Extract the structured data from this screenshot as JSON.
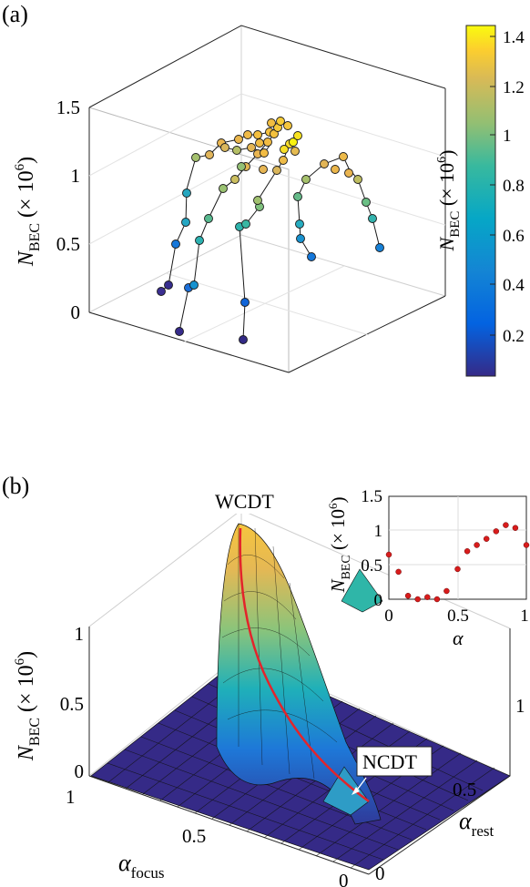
{
  "panel_a": {
    "label": "(a)",
    "zlabel_main": "N",
    "zlabel_sub": "BEC",
    "zlabel_rest": "(× 10",
    "zlabel_exp": "6",
    "zlabel_close": ")",
    "colorbar_label_main": "N",
    "colorbar_label_sub": "BEC",
    "colorbar_label_rest": "(× 10",
    "colorbar_label_exp": "6",
    "colorbar_label_close": ")"
  },
  "panel_b": {
    "label": "(b)",
    "annotation_top": "WCDT",
    "annotation_bottom": "NCDT",
    "zlabel_main": "N",
    "zlabel_sub": "BEC",
    "zlabel_rest": "(× 10",
    "zlabel_exp": "6",
    "zlabel_close": ")",
    "xlabel_main": "α",
    "xlabel_sub": "focus",
    "ylabel_main": "α",
    "ylabel_sub": "rest",
    "inset_xlabel": "α",
    "inset_ylabel_main": "N",
    "inset_ylabel_sub": "BEC",
    "inset_ylabel_rest": "(× 10",
    "inset_ylabel_exp": "6",
    "inset_ylabel_close": ")"
  },
  "colors": {
    "marker_red": "#d81c1c",
    "curve_red": "#e3242b",
    "surface_low": "#352a87"
  },
  "chart_data": [
    {
      "type": "scatter",
      "name": "panel-a-3d-scatter",
      "zlim": [
        0,
        1.5
      ],
      "z_ticks": [
        "0",
        "0.5",
        "1",
        "1.5"
      ],
      "colorbar": {
        "range": [
          0.02,
          1.43
        ],
        "ticks": [
          "0.2",
          "0.4",
          "0.6",
          "0.8",
          "1",
          "1.2",
          "1.4"
        ],
        "colormap": "parula"
      },
      "points_z": [
        0.15,
        0.2,
        0.45,
        0.65,
        0.85,
        1.05,
        1.15,
        1.25,
        0.05,
        0.35,
        0.6,
        0.75,
        1.0,
        1.2,
        1.3,
        1.35,
        0.1,
        0.3,
        0.6,
        0.85,
        1.15,
        1.3,
        1.4,
        1.43,
        0.15,
        0.3,
        0.45,
        0.6,
        0.85,
        1.0,
        1.15,
        1.25
      ]
    },
    {
      "type": "surface",
      "name": "panel-b-3d-surface",
      "zlim": [
        0,
        1.0
      ],
      "z_ticks": [
        "0",
        "0.5",
        "1"
      ],
      "x_ticks": [
        "0",
        "0.5",
        "1"
      ],
      "y_ticks": [
        "0",
        "0.5",
        "1"
      ]
    },
    {
      "type": "scatter",
      "name": "panel-b-inset",
      "x": [
        0,
        0.07,
        0.14,
        0.21,
        0.28,
        0.35,
        0.42,
        0.5,
        0.57,
        0.64,
        0.71,
        0.78,
        0.85,
        0.92,
        1.0
      ],
      "y": [
        0.65,
        0.4,
        0.05,
        0.0,
        0.03,
        0.0,
        0.12,
        0.44,
        0.7,
        0.79,
        0.88,
        0.99,
        1.08,
        1.04,
        0.79
      ],
      "xlim": [
        0,
        1
      ],
      "ylim": [
        0,
        1.5
      ],
      "x_ticks": [
        "0",
        "0.5",
        "1"
      ],
      "y_ticks": [
        "0",
        "0.5",
        "1",
        "1.5"
      ],
      "grid": true
    }
  ]
}
